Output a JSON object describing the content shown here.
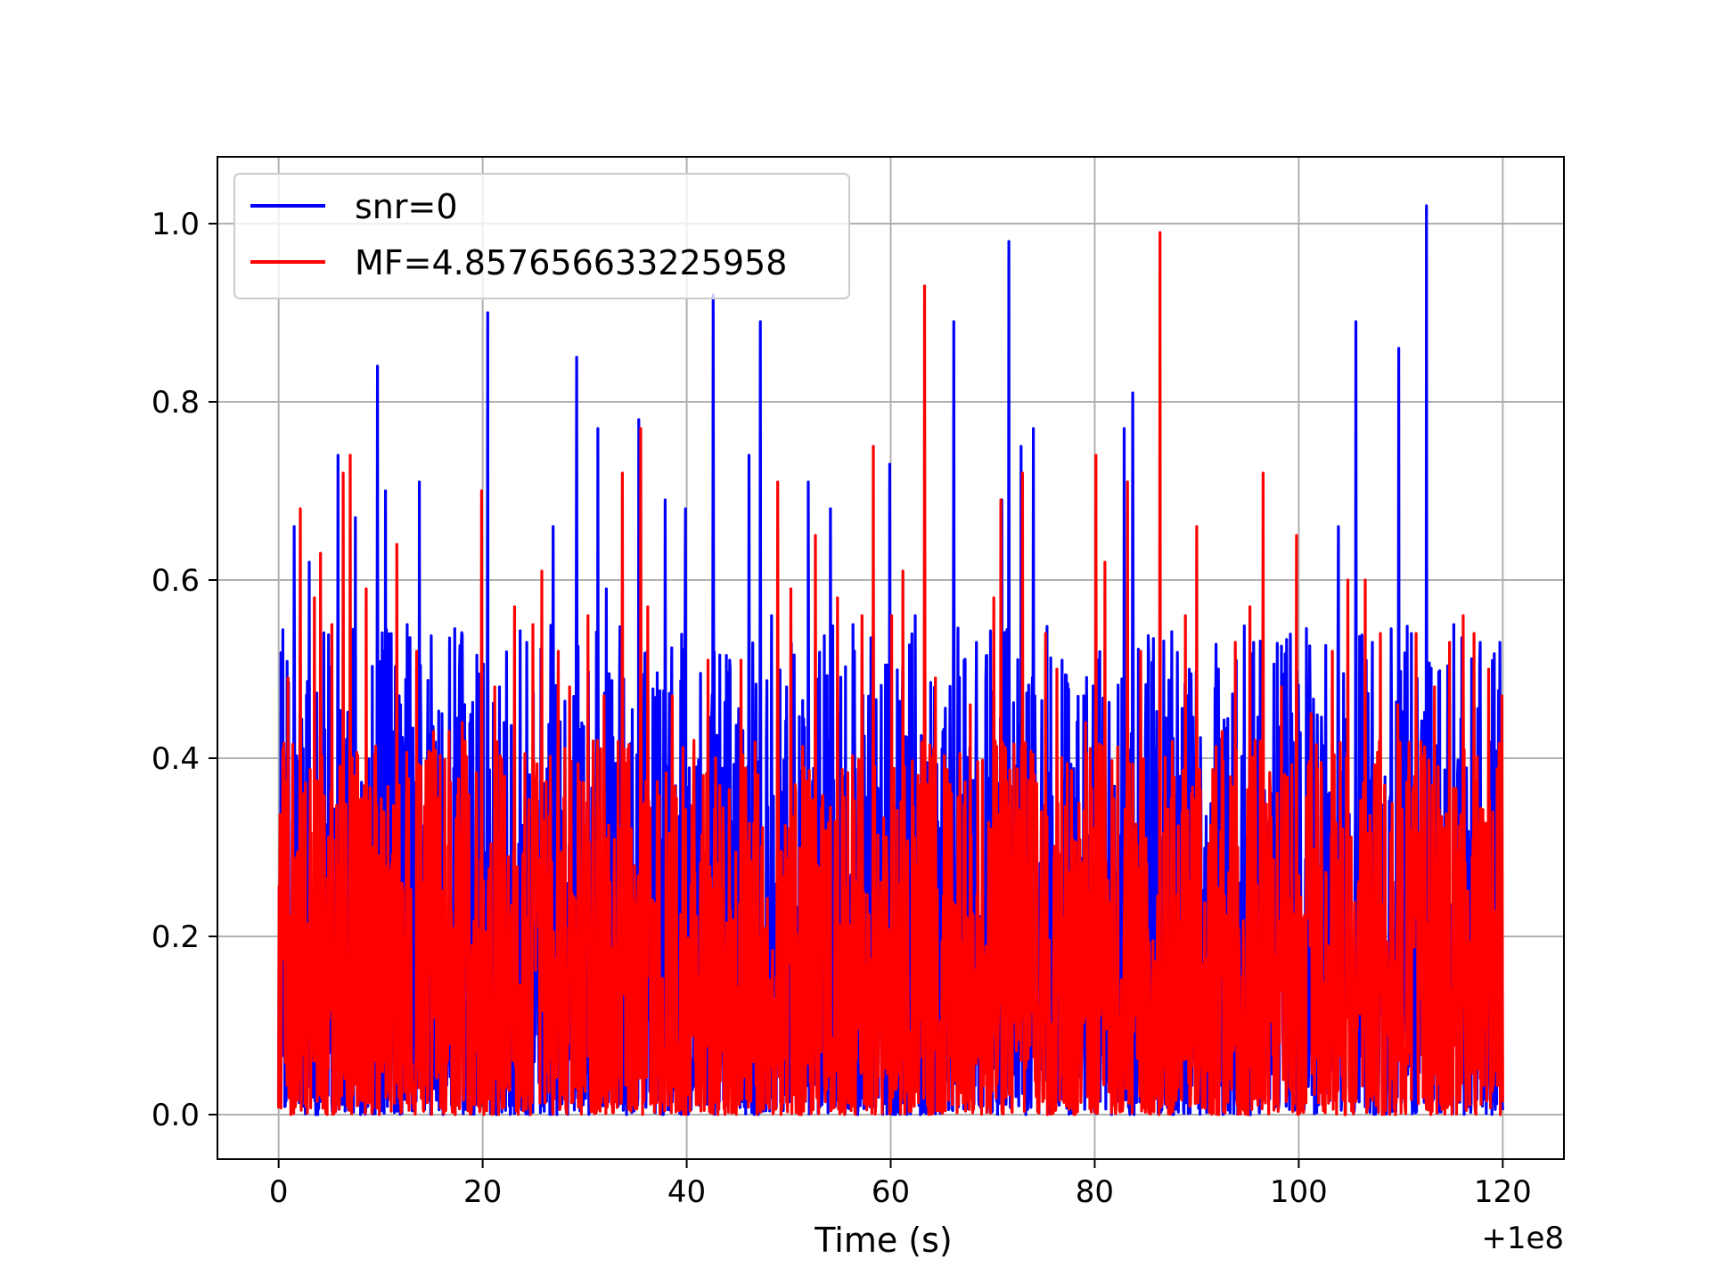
{
  "chart_data": {
    "type": "line",
    "title": "",
    "xlabel": "Time (s)",
    "ylabel": "",
    "x_offset_label": "+1e8",
    "xlim": [
      -6,
      126
    ],
    "ylim": [
      -0.05,
      1.075
    ],
    "xticks": [
      0,
      20,
      40,
      60,
      80,
      100,
      120
    ],
    "xtick_labels": [
      "0",
      "20",
      "40",
      "60",
      "80",
      "100",
      "120"
    ],
    "yticks": [
      0.0,
      0.2,
      0.4,
      0.6,
      0.8,
      1.0
    ],
    "ytick_labels": [
      "0.0",
      "0.2",
      "0.4",
      "0.6",
      "0.8",
      "1.0"
    ],
    "grid": true,
    "legend_position": "top-left",
    "x_range": [
      0,
      120
    ],
    "series": [
      {
        "name": "snr=0",
        "color": "#0000ff",
        "peaks": [
          {
            "x": 0.3,
            "y": 0.36
          },
          {
            "x": 1.5,
            "y": 0.66
          },
          {
            "x": 3.0,
            "y": 0.62
          },
          {
            "x": 5.8,
            "y": 0.74
          },
          {
            "x": 7.5,
            "y": 0.67
          },
          {
            "x": 9.7,
            "y": 0.84
          },
          {
            "x": 10.5,
            "y": 0.7
          },
          {
            "x": 11.8,
            "y": 0.47
          },
          {
            "x": 12.6,
            "y": 0.55
          },
          {
            "x": 13.8,
            "y": 0.71
          },
          {
            "x": 16.0,
            "y": 0.45
          },
          {
            "x": 17.9,
            "y": 0.53
          },
          {
            "x": 20.5,
            "y": 0.9
          },
          {
            "x": 22.1,
            "y": 0.44
          },
          {
            "x": 24.3,
            "y": 0.53
          },
          {
            "x": 26.9,
            "y": 0.66
          },
          {
            "x": 29.2,
            "y": 0.85
          },
          {
            "x": 31.3,
            "y": 0.77
          },
          {
            "x": 32.1,
            "y": 0.59
          },
          {
            "x": 35.3,
            "y": 0.78
          },
          {
            "x": 37.9,
            "y": 0.69
          },
          {
            "x": 39.9,
            "y": 0.68
          },
          {
            "x": 42.6,
            "y": 0.92
          },
          {
            "x": 44.2,
            "y": 0.51
          },
          {
            "x": 46.1,
            "y": 0.74
          },
          {
            "x": 47.2,
            "y": 0.89
          },
          {
            "x": 48.3,
            "y": 0.56
          },
          {
            "x": 49.8,
            "y": 0.48
          },
          {
            "x": 51.9,
            "y": 0.71
          },
          {
            "x": 54.1,
            "y": 0.68
          },
          {
            "x": 56.3,
            "y": 0.55
          },
          {
            "x": 59.9,
            "y": 0.73
          },
          {
            "x": 62.4,
            "y": 0.56
          },
          {
            "x": 65.1,
            "y": 0.43
          },
          {
            "x": 66.2,
            "y": 0.89
          },
          {
            "x": 68.4,
            "y": 0.53
          },
          {
            "x": 70.9,
            "y": 0.69
          },
          {
            "x": 71.6,
            "y": 0.98
          },
          {
            "x": 72.8,
            "y": 0.75
          },
          {
            "x": 74.0,
            "y": 0.77
          },
          {
            "x": 76.8,
            "y": 0.51
          },
          {
            "x": 78.9,
            "y": 0.47
          },
          {
            "x": 82.9,
            "y": 0.77
          },
          {
            "x": 83.7,
            "y": 0.81
          },
          {
            "x": 85.9,
            "y": 0.41
          },
          {
            "x": 89.1,
            "y": 0.47
          },
          {
            "x": 92.1,
            "y": 0.5
          },
          {
            "x": 95.6,
            "y": 0.53
          },
          {
            "x": 99.3,
            "y": 0.45
          },
          {
            "x": 103.9,
            "y": 0.66
          },
          {
            "x": 105.6,
            "y": 0.89
          },
          {
            "x": 107.2,
            "y": 0.53
          },
          {
            "x": 109.8,
            "y": 0.86
          },
          {
            "x": 112.5,
            "y": 1.02
          },
          {
            "x": 115.2,
            "y": 0.55
          },
          {
            "x": 117.8,
            "y": 0.53
          },
          {
            "x": 119.7,
            "y": 0.53
          }
        ]
      },
      {
        "name": "MF=4.857656633225958",
        "color": "#ff0000",
        "peaks": [
          {
            "x": 0.4,
            "y": 0.41
          },
          {
            "x": 0.9,
            "y": 0.49
          },
          {
            "x": 2.1,
            "y": 0.68
          },
          {
            "x": 3.5,
            "y": 0.58
          },
          {
            "x": 4.1,
            "y": 0.63
          },
          {
            "x": 5.2,
            "y": 0.55
          },
          {
            "x": 6.3,
            "y": 0.72
          },
          {
            "x": 7.0,
            "y": 0.74
          },
          {
            "x": 8.6,
            "y": 0.59
          },
          {
            "x": 10.3,
            "y": 0.34
          },
          {
            "x": 11.6,
            "y": 0.64
          },
          {
            "x": 13.5,
            "y": 0.52
          },
          {
            "x": 15.2,
            "y": 0.43
          },
          {
            "x": 16.7,
            "y": 0.43
          },
          {
            "x": 18.0,
            "y": 0.44
          },
          {
            "x": 19.9,
            "y": 0.7
          },
          {
            "x": 21.2,
            "y": 0.48
          },
          {
            "x": 23.1,
            "y": 0.57
          },
          {
            "x": 24.9,
            "y": 0.55
          },
          {
            "x": 25.8,
            "y": 0.61
          },
          {
            "x": 27.4,
            "y": 0.52
          },
          {
            "x": 28.5,
            "y": 0.48
          },
          {
            "x": 30.3,
            "y": 0.56
          },
          {
            "x": 31.9,
            "y": 0.47
          },
          {
            "x": 33.7,
            "y": 0.72
          },
          {
            "x": 35.5,
            "y": 0.77
          },
          {
            "x": 36.2,
            "y": 0.57
          },
          {
            "x": 38.6,
            "y": 0.47
          },
          {
            "x": 40.7,
            "y": 0.42
          },
          {
            "x": 42.1,
            "y": 0.51
          },
          {
            "x": 45.3,
            "y": 0.51
          },
          {
            "x": 48.9,
            "y": 0.71
          },
          {
            "x": 50.2,
            "y": 0.59
          },
          {
            "x": 52.6,
            "y": 0.65
          },
          {
            "x": 54.8,
            "y": 0.58
          },
          {
            "x": 57.2,
            "y": 0.56
          },
          {
            "x": 58.3,
            "y": 0.75
          },
          {
            "x": 60.1,
            "y": 0.56
          },
          {
            "x": 61.2,
            "y": 0.61
          },
          {
            "x": 63.3,
            "y": 0.93
          },
          {
            "x": 64.4,
            "y": 0.49
          },
          {
            "x": 67.8,
            "y": 0.46
          },
          {
            "x": 70.1,
            "y": 0.58
          },
          {
            "x": 70.8,
            "y": 0.69
          },
          {
            "x": 72.9,
            "y": 0.72
          },
          {
            "x": 75.2,
            "y": 0.54
          },
          {
            "x": 76.3,
            "y": 0.5
          },
          {
            "x": 79.1,
            "y": 0.44
          },
          {
            "x": 80.1,
            "y": 0.74
          },
          {
            "x": 81.0,
            "y": 0.62
          },
          {
            "x": 83.2,
            "y": 0.71
          },
          {
            "x": 84.5,
            "y": 0.52
          },
          {
            "x": 86.4,
            "y": 0.99
          },
          {
            "x": 88.9,
            "y": 0.56
          },
          {
            "x": 90.0,
            "y": 0.66
          },
          {
            "x": 92.5,
            "y": 0.43
          },
          {
            "x": 93.8,
            "y": 0.53
          },
          {
            "x": 95.2,
            "y": 0.57
          },
          {
            "x": 96.5,
            "y": 0.72
          },
          {
            "x": 98.3,
            "y": 0.48
          },
          {
            "x": 99.8,
            "y": 0.65
          },
          {
            "x": 101.2,
            "y": 0.45
          },
          {
            "x": 103.3,
            "y": 0.52
          },
          {
            "x": 104.8,
            "y": 0.6
          },
          {
            "x": 106.5,
            "y": 0.6
          },
          {
            "x": 108.0,
            "y": 0.54
          },
          {
            "x": 109.7,
            "y": 0.46
          },
          {
            "x": 111.5,
            "y": 0.54
          },
          {
            "x": 113.3,
            "y": 0.48
          },
          {
            "x": 114.8,
            "y": 0.53
          },
          {
            "x": 116.1,
            "y": 0.56
          },
          {
            "x": 117.2,
            "y": 0.54
          },
          {
            "x": 118.6,
            "y": 0.5
          },
          {
            "x": 119.9,
            "y": 0.47
          }
        ]
      }
    ]
  }
}
